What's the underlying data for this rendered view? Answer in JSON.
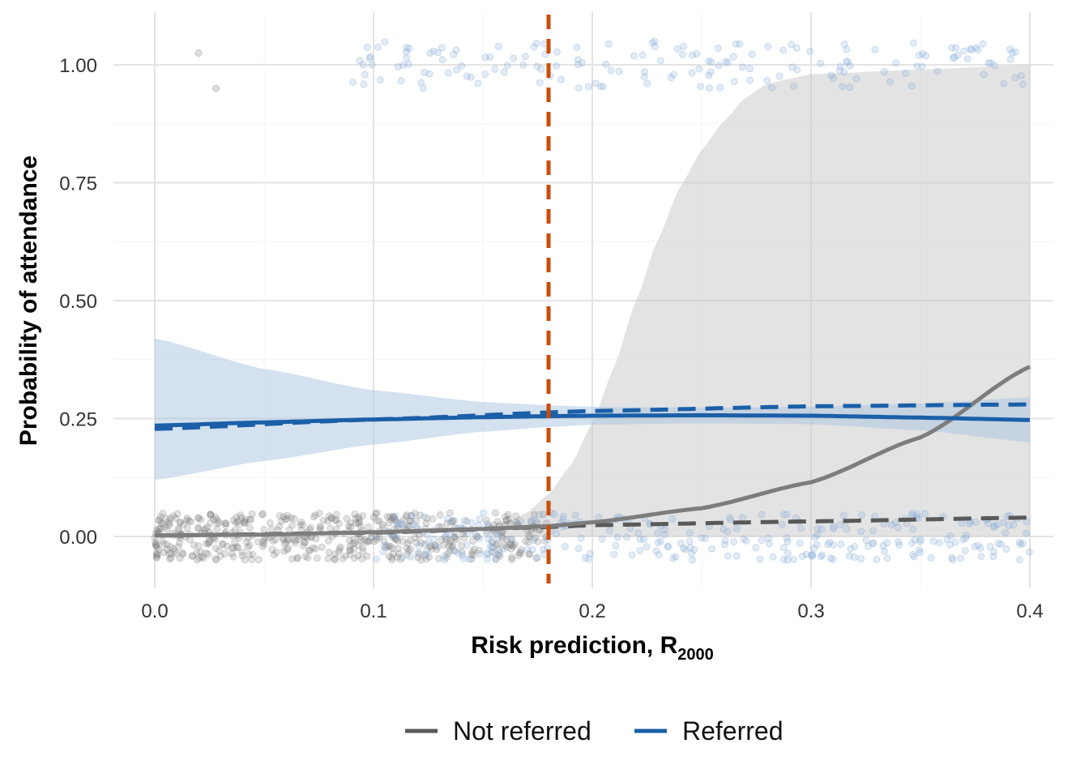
{
  "chart_data": {
    "type": "scatter",
    "title": "",
    "xlabel": "Risk prediction, R",
    "xlabel_subscript": "2000",
    "ylabel": "Probability of attendance",
    "xlim": [
      0.0,
      0.4
    ],
    "ylim": [
      -0.1,
      1.1
    ],
    "x_ticks": [
      0.0,
      0.1,
      0.2,
      0.3,
      0.4
    ],
    "x_tick_labels": [
      "0.0",
      "0.1",
      "0.2",
      "0.3",
      "0.4"
    ],
    "y_ticks": [
      0.0,
      0.25,
      0.5,
      0.75,
      1.0
    ],
    "y_tick_labels": [
      "0.00",
      "0.25",
      "0.50",
      "0.75",
      "1.00"
    ],
    "threshold_line": {
      "x": 0.18,
      "color": "#cc4c0a",
      "style": "dashed"
    },
    "series": [
      {
        "name": "Not referred",
        "color": "#595959",
        "solid_curve": {
          "x": [
            0.0,
            0.05,
            0.1,
            0.15,
            0.18,
            0.2,
            0.25,
            0.3,
            0.35,
            0.4
          ],
          "y": [
            0.002,
            0.004,
            0.009,
            0.016,
            0.022,
            0.03,
            0.06,
            0.115,
            0.21,
            0.36
          ]
        },
        "dashed_curve": {
          "x": [
            0.0,
            0.1,
            0.18,
            0.2,
            0.3,
            0.4
          ],
          "y": [
            0.002,
            0.008,
            0.02,
            0.024,
            0.032,
            0.04
          ]
        },
        "confidence_band": {
          "x": [
            0.15,
            0.16,
            0.17,
            0.18,
            0.19,
            0.2,
            0.21,
            0.22,
            0.23,
            0.24,
            0.25,
            0.26,
            0.27,
            0.28,
            0.29,
            0.3,
            0.35,
            0.4
          ],
          "lower": [
            0.0,
            0.0,
            0.0,
            0.0,
            0.0,
            0.0,
            0.0,
            0.0,
            0.0,
            0.0,
            0.0,
            0.0,
            0.0,
            0.0,
            0.0,
            0.0,
            0.0,
            0.0
          ],
          "upper": [
            0.02,
            0.03,
            0.05,
            0.09,
            0.15,
            0.24,
            0.36,
            0.5,
            0.63,
            0.74,
            0.82,
            0.88,
            0.93,
            0.96,
            0.97,
            0.98,
            0.99,
            1.0
          ]
        },
        "points_description": "jittered observed outcomes around 0 and 1",
        "points_x_range": [
          0.0,
          0.18
        ],
        "point_count_y0": 900,
        "points_y1_x": [
          0.02,
          0.028
        ]
      },
      {
        "name": "Referred",
        "color": "#1a5fa8",
        "solid_curve": {
          "x": [
            0.0,
            0.05,
            0.1,
            0.15,
            0.18,
            0.2,
            0.25,
            0.3,
            0.35,
            0.4
          ],
          "y": [
            0.235,
            0.242,
            0.248,
            0.253,
            0.255,
            0.256,
            0.257,
            0.256,
            0.252,
            0.247
          ]
        },
        "dashed_curve": {
          "x": [
            0.0,
            0.1,
            0.2,
            0.3,
            0.4
          ],
          "y": [
            0.228,
            0.248,
            0.266,
            0.276,
            0.28
          ]
        },
        "confidence_band": {
          "x": [
            0.0,
            0.05,
            0.1,
            0.15,
            0.18,
            0.2,
            0.25,
            0.3,
            0.35,
            0.4
          ],
          "lower": [
            0.12,
            0.16,
            0.195,
            0.222,
            0.232,
            0.237,
            0.24,
            0.238,
            0.225,
            0.2
          ],
          "upper": [
            0.42,
            0.355,
            0.31,
            0.285,
            0.278,
            0.275,
            0.273,
            0.275,
            0.282,
            0.295
          ]
        },
        "points_description": "jittered observed outcomes around 0 and 1",
        "points_x_range": [
          0.1,
          0.4
        ],
        "point_count_y0": 420,
        "point_count_y1": 170
      }
    ],
    "legend": {
      "position": "bottom",
      "entries": [
        "Not referred",
        "Referred"
      ]
    }
  }
}
